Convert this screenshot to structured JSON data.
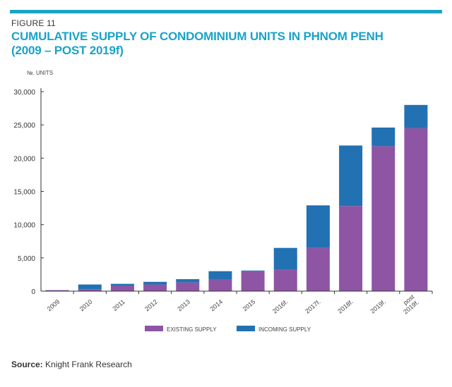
{
  "header": {
    "figure_label": "FIGURE 11",
    "title_line1": "CUMULATIVE SUPPLY OF CONDOMINIUM UNITS IN PHNOM PENH",
    "title_line2": "(2009 – POST 2019f)"
  },
  "footer": {
    "source_prefix": "Source:",
    "source_text": "Knight Frank Research"
  },
  "colors": {
    "existing": "#8e55a4",
    "incoming": "#2271b3",
    "accent": "#1aa3c8"
  },
  "chart_data": {
    "type": "bar",
    "stacked": true,
    "title": "CUMULATIVE SUPPLY OF CONDOMINIUM UNITS IN PHNOM PENH",
    "ylabel": "№. UNITS",
    "xlabel": "",
    "ylim": [
      0,
      30000
    ],
    "yticks": [
      0,
      5000,
      10000,
      15000,
      20000,
      25000,
      30000
    ],
    "ytick_labels": [
      "0",
      "5,000",
      "10,000",
      "15,000",
      "20,000",
      "25,000",
      "30,000"
    ],
    "categories": [
      "2009",
      "2010",
      "2011",
      "2012",
      "2013",
      "2014",
      "2015",
      "2016f.",
      "2017f.",
      "2018f.",
      "2019f.",
      "post 2019f."
    ],
    "series": [
      {
        "name": "EXISTING SUPPLY",
        "values": [
          150,
          300,
          800,
          1000,
          1300,
          1800,
          3000,
          3200,
          6500,
          12800,
          21800,
          24500
        ]
      },
      {
        "name": "INCOMING SUPPLY",
        "values": [
          0,
          700,
          300,
          400,
          500,
          1200,
          100,
          3300,
          6400,
          9100,
          2800,
          3500
        ]
      }
    ],
    "legend_position": "bottom-center",
    "grid": false
  }
}
